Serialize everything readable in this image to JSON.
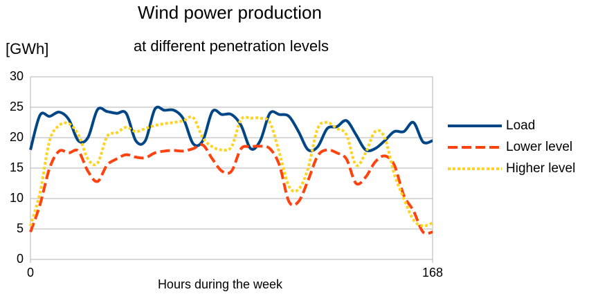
{
  "chart_data": {
    "type": "line",
    "title": "Wind power production",
    "subtitle": "at different penetration levels",
    "y_label": "[GWh]",
    "x_label": "Hours during the week",
    "x": [
      0,
      4,
      8,
      12,
      16,
      20,
      24,
      28,
      32,
      36,
      40,
      44,
      48,
      52,
      56,
      60,
      64,
      68,
      72,
      76,
      80,
      84,
      88,
      92,
      96,
      100,
      104,
      108,
      112,
      116,
      120,
      124,
      128,
      132,
      136,
      140,
      144,
      148,
      152,
      156,
      160,
      164,
      168
    ],
    "series": [
      {
        "name": "Load",
        "color": "#004586",
        "dash": "solid",
        "values": [
          18,
          23.7,
          23.5,
          24.2,
          23,
          19.5,
          20,
          24.6,
          24.3,
          24,
          24,
          19.5,
          19.5,
          24.7,
          24.5,
          24.5,
          23,
          19,
          19.5,
          24.3,
          23.8,
          23.8,
          22,
          18.2,
          19.5,
          24,
          23.8,
          23.5,
          21,
          18,
          18.5,
          21.5,
          21.8,
          22.8,
          20.5,
          18,
          18.2,
          19.5,
          21,
          21,
          22.5,
          19.3,
          19.5
        ]
      },
      {
        "name": "Lower level",
        "color": "#ff420e",
        "dash": "dashed",
        "values": [
          4.5,
          9,
          15,
          17.8,
          17.5,
          17.8,
          14.5,
          12.8,
          15.5,
          16.5,
          17.2,
          16.8,
          16.7,
          17.5,
          17.8,
          17.9,
          17.8,
          18.2,
          18.8,
          16.5,
          14.5,
          14.5,
          18.2,
          18.5,
          18.6,
          18.2,
          15.5,
          9.5,
          9.5,
          13,
          17,
          18,
          17.5,
          16.5,
          12.5,
          13.5,
          16,
          17,
          15.5,
          10.5,
          8,
          4.5,
          4.5
        ]
      },
      {
        "name": "Higher level",
        "color": "#ffd320",
        "dash": "dotted",
        "values": [
          5.5,
          11,
          19.5,
          22,
          22.3,
          20.5,
          16.5,
          15.8,
          20.2,
          20.8,
          21.7,
          21,
          21.5,
          22,
          22.3,
          22.5,
          22.8,
          23.3,
          20,
          18.5,
          18,
          18.5,
          23,
          23.2,
          23.2,
          22.5,
          17.5,
          12,
          11.5,
          15,
          21.5,
          22.5,
          21.5,
          20.5,
          15.5,
          17.5,
          21,
          20,
          14,
          10,
          6.5,
          5.5,
          6
        ]
      }
    ],
    "xlim": [
      0,
      168
    ],
    "xticks": [
      0,
      168
    ],
    "ylim": [
      0,
      30
    ],
    "yticks": [
      0,
      5,
      10,
      15,
      20,
      25,
      30
    ],
    "grid": true,
    "legend": "right"
  }
}
